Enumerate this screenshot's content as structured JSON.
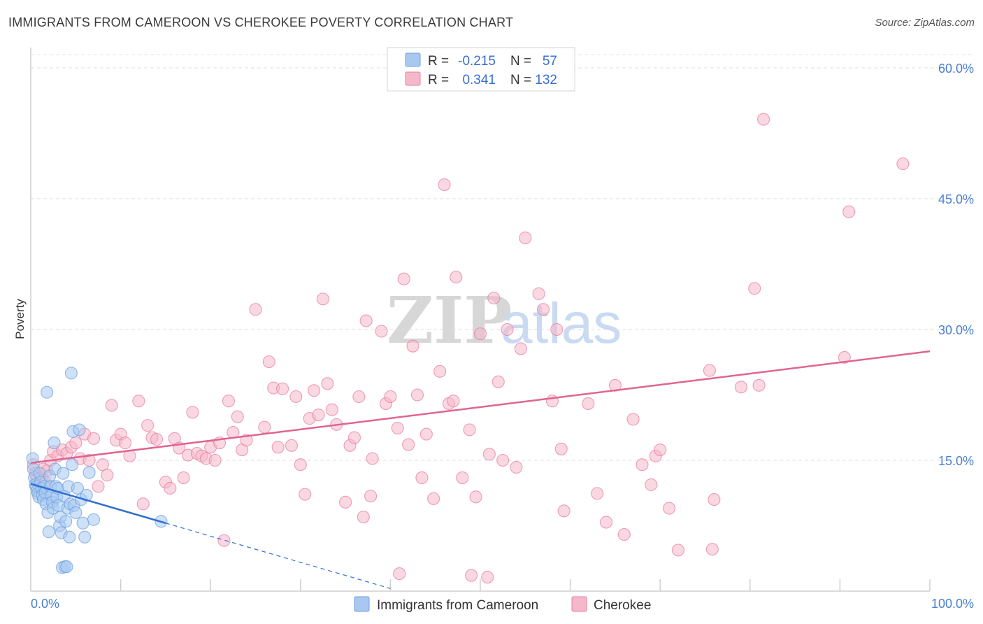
{
  "title": "IMMIGRANTS FROM CAMEROON VS CHEROKEE POVERTY CORRELATION CHART",
  "source": "Source: ZipAtlas.com",
  "watermark": {
    "zip": "ZIP",
    "atlas": "atlas"
  },
  "legend_box": {
    "rows": [
      {
        "r_label": "R =",
        "r_value": "-0.215",
        "n_label": "N =",
        "n_value": "57",
        "color": "#a8c8f0"
      },
      {
        "r_label": "R =",
        "r_value": "0.341",
        "n_label": "N =",
        "n_value": "132",
        "color": "#f5b8cb"
      }
    ]
  },
  "chart_data": {
    "type": "scatter",
    "title": "IMMIGRANTS FROM CAMEROON VS CHEROKEE POVERTY CORRELATION CHART",
    "xlabel": "",
    "ylabel": "Poverty",
    "xlim": [
      0,
      100
    ],
    "ylim": [
      0,
      62
    ],
    "x_tick_labels": [
      "0.0%",
      "100.0%"
    ],
    "y_ticks": [
      15,
      30,
      45,
      60
    ],
    "y_tick_labels": [
      "15.0%",
      "30.0%",
      "45.0%",
      "60.0%"
    ],
    "grid": true,
    "legend_position": "bottom",
    "series": [
      {
        "name": "Immigrants from Cameroon",
        "color": "#6fa1e0",
        "fill": "#a8c8f0",
        "trend": {
          "x0": 0,
          "y0": 12.3,
          "x1": 15,
          "y1": 7.8,
          "dash_to_x": 40,
          "dash_to_y": 0.3
        },
        "points": [
          [
            0.2,
            15.2
          ],
          [
            0.3,
            14.0
          ],
          [
            0.4,
            13.0
          ],
          [
            0.5,
            12.2
          ],
          [
            0.6,
            12.0
          ],
          [
            0.7,
            11.5
          ],
          [
            0.8,
            11.2
          ],
          [
            0.9,
            10.8
          ],
          [
            1.0,
            13.5
          ],
          [
            1.1,
            12.5
          ],
          [
            1.2,
            11.8
          ],
          [
            1.3,
            11.0
          ],
          [
            1.4,
            10.5
          ],
          [
            1.5,
            12.0
          ],
          [
            1.6,
            11.3
          ],
          [
            1.7,
            10.0
          ],
          [
            1.8,
            22.8
          ],
          [
            1.9,
            9.0
          ],
          [
            2.0,
            6.8
          ],
          [
            2.1,
            13.2
          ],
          [
            2.2,
            12.0
          ],
          [
            2.3,
            11.0
          ],
          [
            2.4,
            10.2
          ],
          [
            2.5,
            9.5
          ],
          [
            2.6,
            17.0
          ],
          [
            2.7,
            14.0
          ],
          [
            2.8,
            12.0
          ],
          [
            2.9,
            10.8
          ],
          [
            3.0,
            11.8
          ],
          [
            3.1,
            9.8
          ],
          [
            3.2,
            7.5
          ],
          [
            3.3,
            8.5
          ],
          [
            3.4,
            6.7
          ],
          [
            3.5,
            2.7
          ],
          [
            3.6,
            13.5
          ],
          [
            3.7,
            10.9
          ],
          [
            3.8,
            2.8
          ],
          [
            3.9,
            8.0
          ],
          [
            4.0,
            2.8
          ],
          [
            4.1,
            9.5
          ],
          [
            4.2,
            12.0
          ],
          [
            4.3,
            6.2
          ],
          [
            4.4,
            10.0
          ],
          [
            4.5,
            25.0
          ],
          [
            4.6,
            14.5
          ],
          [
            4.7,
            18.3
          ],
          [
            4.8,
            9.8
          ],
          [
            5.0,
            9.0
          ],
          [
            5.2,
            11.8
          ],
          [
            5.4,
            18.5
          ],
          [
            5.6,
            10.5
          ],
          [
            5.8,
            7.8
          ],
          [
            6.0,
            6.2
          ],
          [
            6.2,
            11.0
          ],
          [
            6.5,
            13.6
          ],
          [
            7.0,
            8.2
          ],
          [
            14.5,
            8.0
          ]
        ]
      },
      {
        "name": "Cherokee",
        "color": "#e87fa2",
        "fill": "#f5b8cb",
        "trend": {
          "x0": 0,
          "y0": 14.7,
          "x1": 100,
          "y1": 27.5
        },
        "points": [
          [
            0.3,
            14.5
          ],
          [
            0.5,
            13.5
          ],
          [
            0.7,
            12.8
          ],
          [
            0.9,
            12.0
          ],
          [
            1.2,
            13.0
          ],
          [
            1.4,
            14.0
          ],
          [
            1.6,
            12.5
          ],
          [
            1.8,
            13.8
          ],
          [
            2.2,
            15.0
          ],
          [
            2.5,
            16.0
          ],
          [
            3.0,
            15.5
          ],
          [
            3.5,
            16.2
          ],
          [
            4.0,
            15.8
          ],
          [
            4.5,
            16.5
          ],
          [
            5.0,
            17.0
          ],
          [
            5.5,
            15.2
          ],
          [
            6.0,
            18.0
          ],
          [
            6.5,
            15.0
          ],
          [
            7.0,
            17.5
          ],
          [
            7.5,
            12.0
          ],
          [
            8.0,
            14.5
          ],
          [
            8.5,
            13.3
          ],
          [
            9.0,
            21.3
          ],
          [
            9.5,
            17.3
          ],
          [
            10.0,
            18.0
          ],
          [
            10.5,
            17.0
          ],
          [
            11.0,
            15.5
          ],
          [
            12.0,
            21.8
          ],
          [
            12.5,
            10.0
          ],
          [
            13.0,
            19.0
          ],
          [
            13.5,
            17.6
          ],
          [
            14.0,
            17.4
          ],
          [
            15.0,
            12.5
          ],
          [
            15.5,
            11.8
          ],
          [
            16.0,
            17.5
          ],
          [
            16.5,
            16.4
          ],
          [
            17.0,
            13.0
          ],
          [
            17.5,
            15.6
          ],
          [
            18.0,
            20.5
          ],
          [
            18.5,
            15.8
          ],
          [
            19.0,
            15.5
          ],
          [
            19.5,
            15.2
          ],
          [
            20.0,
            16.5
          ],
          [
            20.5,
            15.0
          ],
          [
            21.0,
            17.0
          ],
          [
            21.5,
            5.8
          ],
          [
            22.0,
            21.8
          ],
          [
            22.5,
            18.2
          ],
          [
            23.0,
            20.0
          ],
          [
            23.5,
            16.2
          ],
          [
            24.0,
            17.3
          ],
          [
            25.0,
            32.3
          ],
          [
            26.0,
            18.8
          ],
          [
            26.5,
            26.3
          ],
          [
            27.0,
            23.3
          ],
          [
            27.5,
            16.5
          ],
          [
            28.0,
            23.2
          ],
          [
            29.0,
            16.7
          ],
          [
            29.5,
            22.3
          ],
          [
            30.0,
            14.5
          ],
          [
            30.5,
            11.1
          ],
          [
            31.0,
            19.8
          ],
          [
            31.5,
            23.0
          ],
          [
            32.0,
            20.2
          ],
          [
            32.5,
            33.5
          ],
          [
            33.0,
            23.8
          ],
          [
            33.5,
            20.8
          ],
          [
            34.0,
            19.1
          ],
          [
            35.0,
            10.2
          ],
          [
            35.5,
            16.7
          ],
          [
            36.0,
            17.6
          ],
          [
            36.5,
            22.3
          ],
          [
            37.0,
            8.5
          ],
          [
            37.3,
            31.0
          ],
          [
            37.8,
            10.9
          ],
          [
            38.0,
            15.2
          ],
          [
            39.0,
            29.8
          ],
          [
            39.5,
            21.5
          ],
          [
            40.0,
            22.3
          ],
          [
            40.8,
            18.7
          ],
          [
            41.0,
            2.0
          ],
          [
            41.5,
            35.8
          ],
          [
            42.0,
            16.8
          ],
          [
            42.5,
            28.1
          ],
          [
            43.0,
            22.5
          ],
          [
            43.5,
            13.0
          ],
          [
            44.0,
            18.0
          ],
          [
            44.8,
            10.6
          ],
          [
            45.5,
            25.2
          ],
          [
            46.0,
            46.6
          ],
          [
            46.5,
            21.5
          ],
          [
            47.0,
            21.8
          ],
          [
            47.3,
            36.0
          ],
          [
            48.0,
            13.0
          ],
          [
            48.8,
            18.5
          ],
          [
            49.0,
            1.8
          ],
          [
            49.5,
            10.8
          ],
          [
            50.0,
            29.5
          ],
          [
            50.8,
            1.6
          ],
          [
            51.0,
            15.7
          ],
          [
            51.5,
            33.6
          ],
          [
            52.0,
            24.0
          ],
          [
            52.5,
            15.0
          ],
          [
            53.0,
            30.0
          ],
          [
            54.0,
            14.2
          ],
          [
            54.5,
            27.8
          ],
          [
            55.0,
            40.5
          ],
          [
            56.5,
            34.1
          ],
          [
            57.0,
            32.3
          ],
          [
            58.0,
            21.8
          ],
          [
            58.5,
            30.0
          ],
          [
            59.0,
            16.3
          ],
          [
            59.3,
            9.2
          ],
          [
            62.0,
            21.5
          ],
          [
            63.0,
            11.2
          ],
          [
            64.0,
            7.9
          ],
          [
            65.0,
            23.6
          ],
          [
            66.0,
            6.5
          ],
          [
            67.0,
            19.7
          ],
          [
            68.0,
            14.5
          ],
          [
            69.0,
            12.2
          ],
          [
            69.5,
            15.5
          ],
          [
            70.0,
            16.2
          ],
          [
            71.0,
            9.5
          ],
          [
            72.0,
            4.7
          ],
          [
            75.5,
            25.3
          ],
          [
            75.8,
            4.8
          ],
          [
            76.0,
            10.5
          ],
          [
            79.0,
            23.4
          ],
          [
            80.5,
            34.7
          ],
          [
            81.0,
            23.6
          ],
          [
            81.5,
            54.1
          ],
          [
            90.5,
            26.8
          ],
          [
            91.0,
            43.5
          ],
          [
            97.0,
            49.0
          ]
        ]
      }
    ]
  }
}
